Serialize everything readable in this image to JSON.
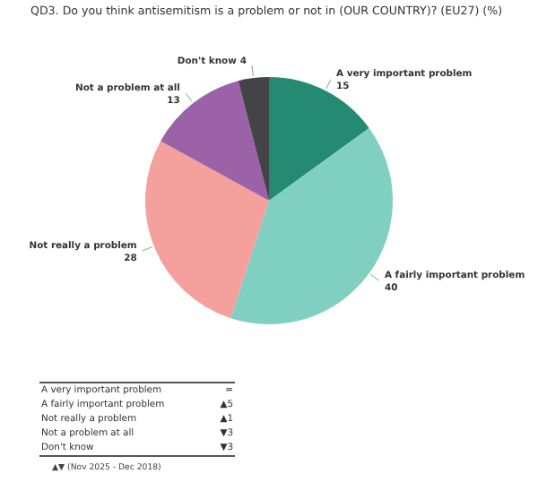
{
  "chart_data": {
    "type": "pie",
    "title": "QD3. Do you think antisemitism is a problem or not in (OUR COUNTRY)? (EU27) (%)",
    "categories": [
      "A very important problem",
      "A fairly important problem",
      "Not really a problem",
      "Not a problem at all",
      "Don't know"
    ],
    "values": [
      15,
      40,
      28,
      13,
      4
    ],
    "colors": [
      "#248a72",
      "#7fd0c0",
      "#f4a09c",
      "#9b62a8",
      "#444448"
    ],
    "data_labels": true,
    "legend": false,
    "annotations": [
      "=",
      "▲5",
      "▲1",
      "▼3",
      "▼3",
      "▲▼ (Nov 2025 - Dec 2018)"
    ]
  }
}
